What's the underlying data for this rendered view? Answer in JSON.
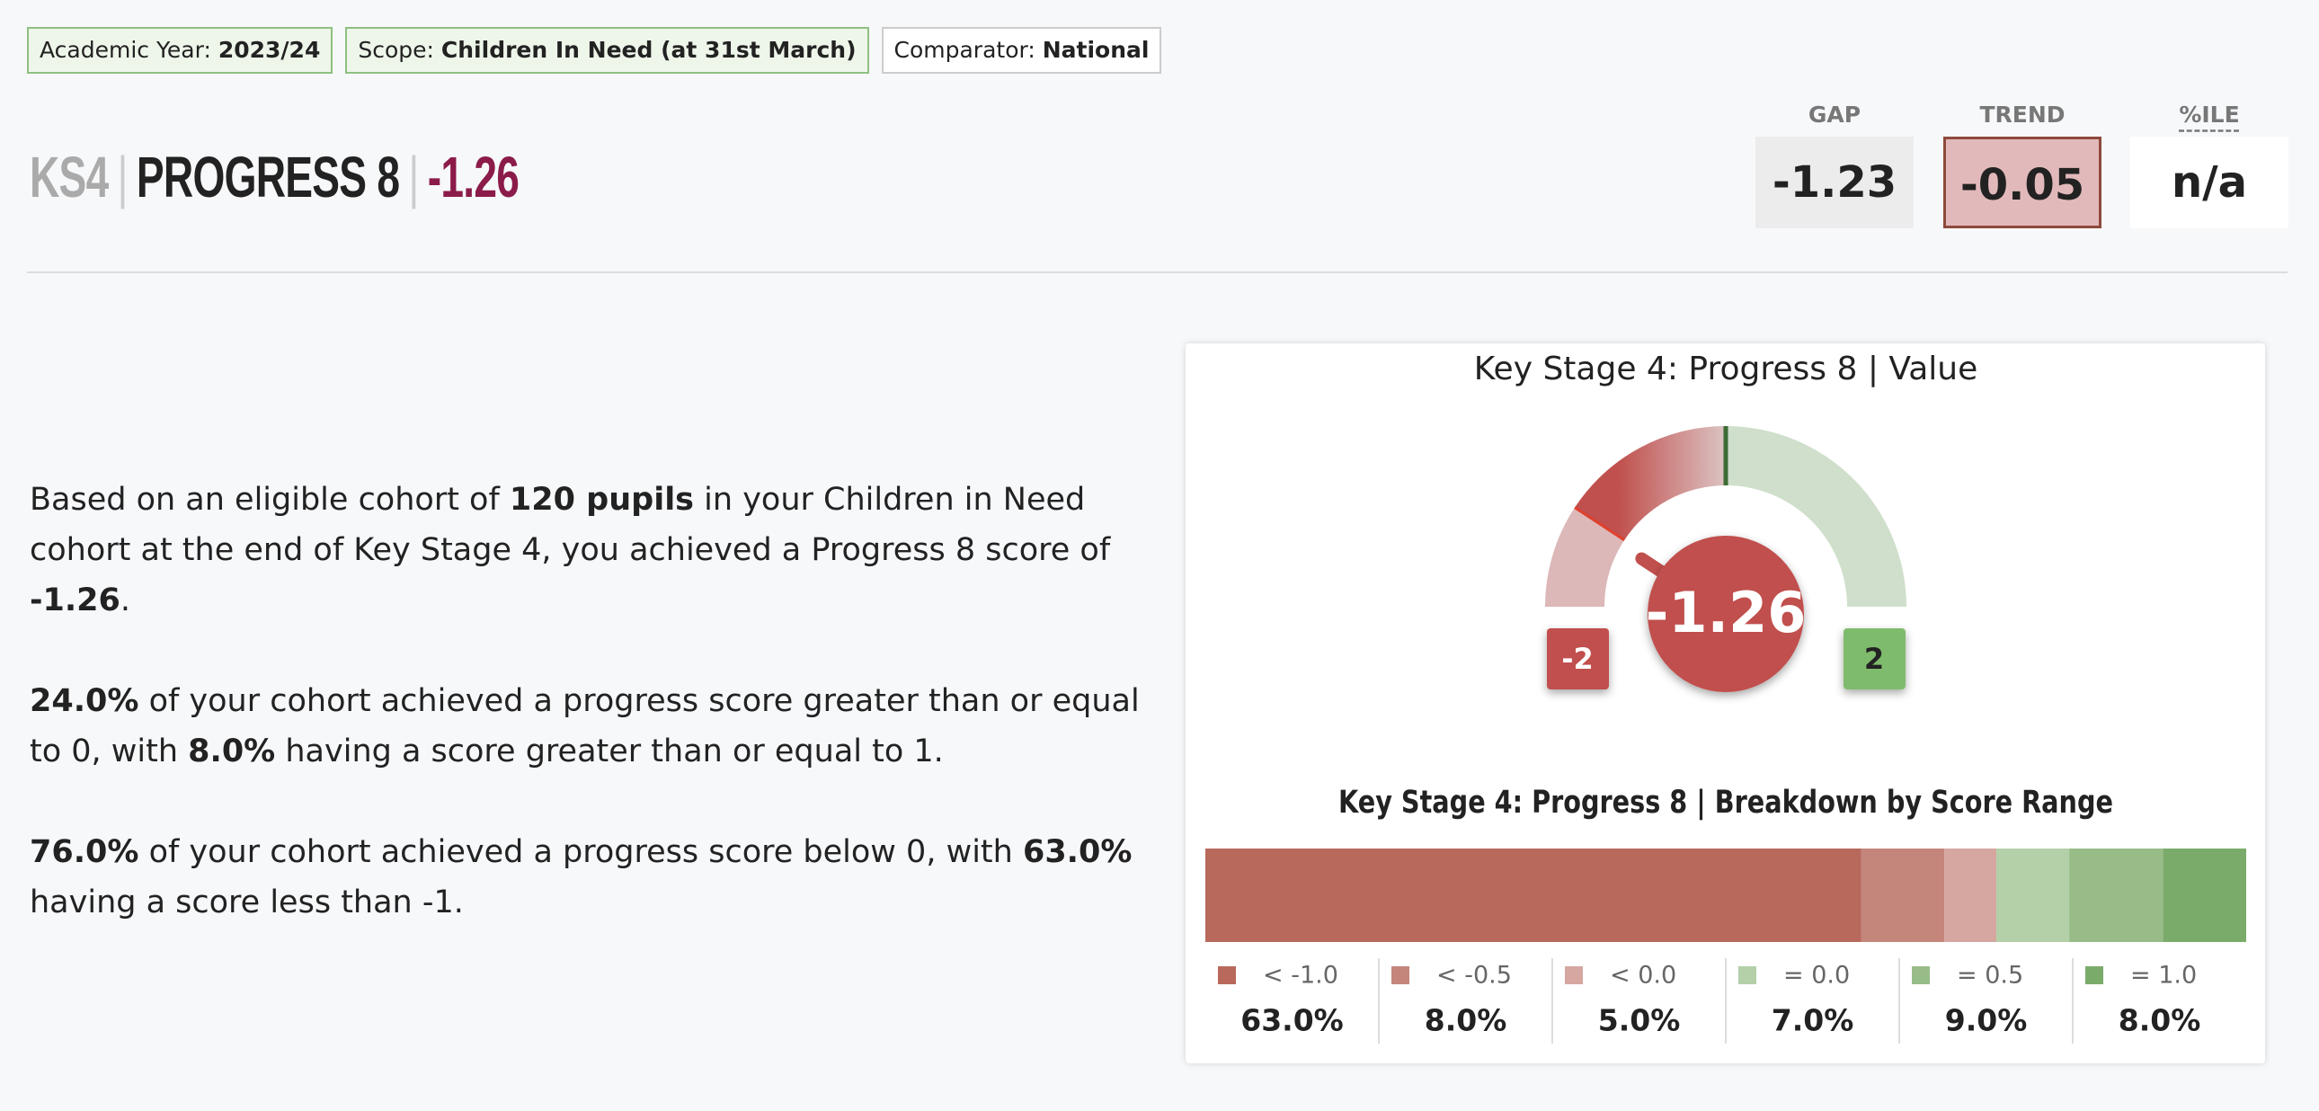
{
  "filters": [
    {
      "label": "Academic Year:",
      "value": "2023/24"
    },
    {
      "label": "Scope:",
      "value": "Children In Need (at 31st March)"
    },
    {
      "label": "Comparator:",
      "value": "National"
    }
  ],
  "header": {
    "stage": "KS4",
    "measure": "PROGRESS 8",
    "score": "-1.26"
  },
  "metrics": [
    {
      "label": "GAP",
      "value": "-1.23"
    },
    {
      "label": "TREND",
      "value": "-0.05"
    },
    {
      "label": "%ILE",
      "value": "n/a"
    }
  ],
  "summary": [
    [
      {
        "text": "Based on an eligible cohort of ",
        "bold": false
      },
      {
        "text": "120 pupils",
        "bold": true
      },
      {
        "text": " in your Children in Need cohort at the end of Key Stage 4, you achieved a Progress 8 score of ",
        "bold": false
      },
      {
        "text": "-1.26",
        "bold": true
      },
      {
        "text": ".",
        "bold": false
      }
    ],
    [
      {
        "text": "24.0%",
        "bold": true
      },
      {
        "text": " of your cohort achieved a progress score greater than or equal to 0, with ",
        "bold": false
      },
      {
        "text": "8.0%",
        "bold": true
      },
      {
        "text": " having a score greater than or equal to 1.",
        "bold": false
      }
    ],
    [
      {
        "text": "76.0%",
        "bold": true
      },
      {
        "text": " of your cohort achieved a progress score below 0, with ",
        "bold": false
      },
      {
        "text": "63.0%",
        "bold": true
      },
      {
        "text": " having a score less than -1.",
        "bold": false
      }
    ]
  ],
  "gauge": {
    "title": "Key Stage 4: Progress 8 | Value",
    "value": -1.26,
    "min": -2,
    "max": 2,
    "color": "#c0504d"
  },
  "breakdown": {
    "title": "Key Stage 4: Progress 8 | Breakdown by Score Range",
    "categories": [
      "< -1.0",
      "< -0.5",
      "< 0.0",
      "= 0.0",
      "= 0.5",
      "= 1.0"
    ],
    "values": [
      63,
      8,
      5,
      7,
      9,
      8
    ],
    "value_labels": [
      "63.0%",
      "8.0%",
      "5.0%",
      "7.0%",
      "9.0%",
      "8.0%"
    ],
    "colors": [
      "#b8695c",
      "#c4857b",
      "#d6a7a1",
      "#b3d0a9",
      "#98bc88",
      "#7bab6b"
    ]
  }
}
